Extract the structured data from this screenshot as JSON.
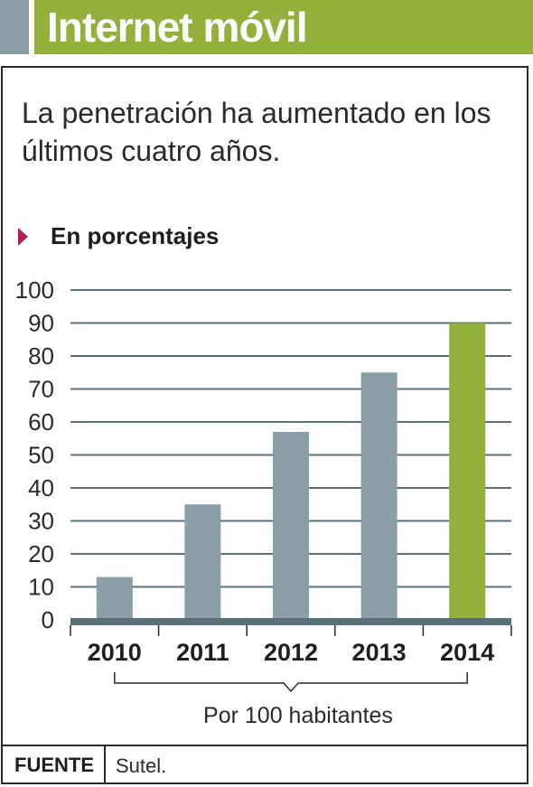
{
  "header": {
    "title": "Internet móvil"
  },
  "subtitle": "La penetración ha aumentado en los últimos cuatro años.",
  "unit_label": "En porcentajes",
  "chart_data": {
    "type": "bar",
    "categories": [
      "2010",
      "2011",
      "2012",
      "2013",
      "2014"
    ],
    "values": [
      13,
      35,
      57,
      75,
      90
    ],
    "ylim": [
      0,
      100
    ],
    "yticks": [
      0,
      10,
      20,
      30,
      40,
      50,
      60,
      70,
      80,
      90,
      100
    ],
    "grid": true,
    "xlabel": "Por 100 habitantes",
    "bar_color": "#8a9ea6",
    "highlight_color": "#93b03a",
    "highlight_category": "2014"
  },
  "footer": {
    "source_key": "FUENTE",
    "source_value": "Sutel."
  },
  "colors": {
    "accent_gray": "#8a9ea6",
    "accent_green": "#93b03a",
    "marker": "#b51f4d"
  }
}
